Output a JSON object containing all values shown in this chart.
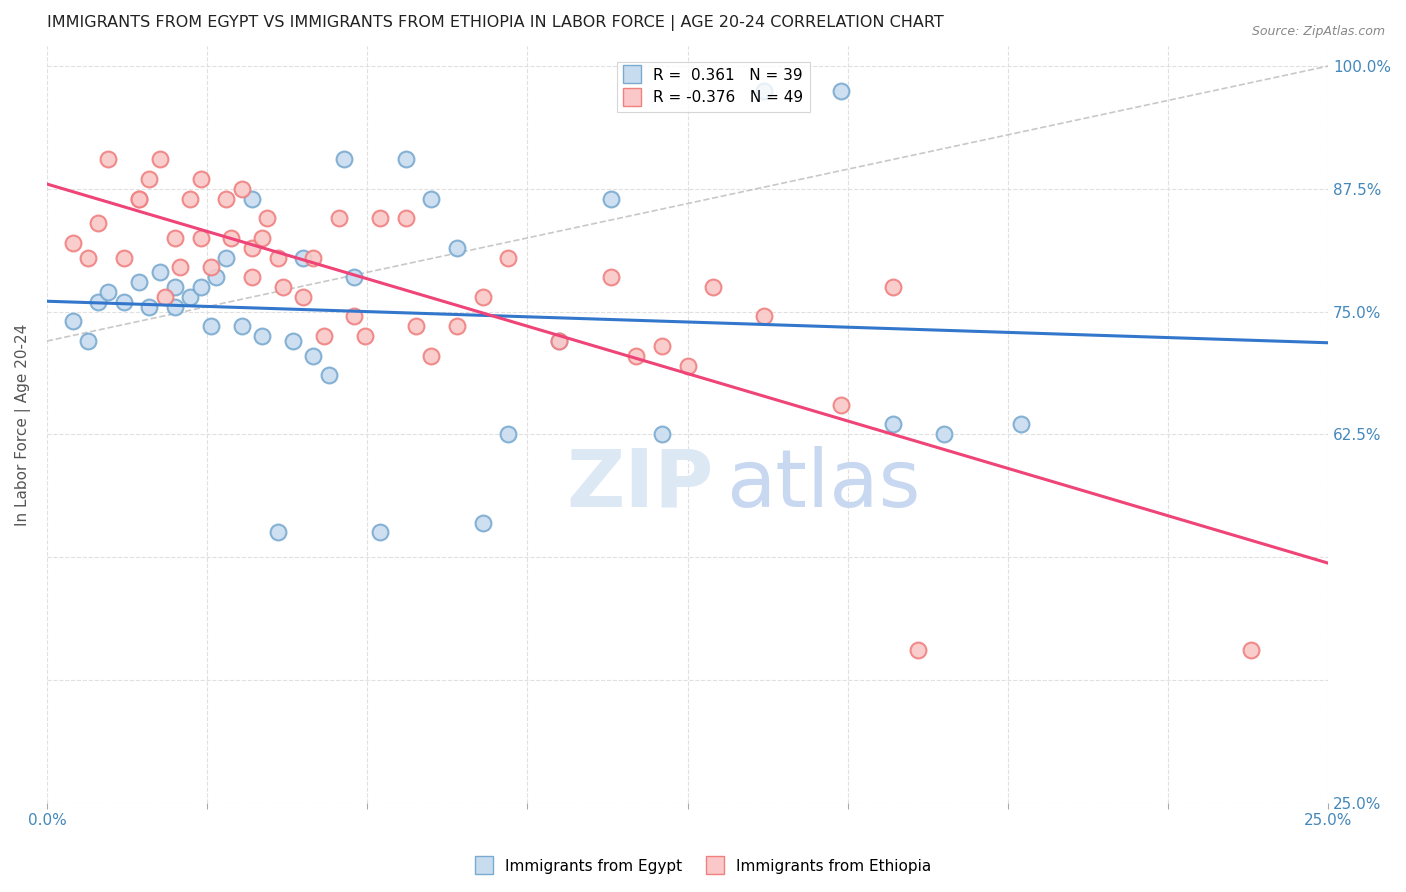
{
  "title": "IMMIGRANTS FROM EGYPT VS IMMIGRANTS FROM ETHIOPIA IN LABOR FORCE | AGE 20-24 CORRELATION CHART",
  "source": "Source: ZipAtlas.com",
  "ylabel": "In Labor Force | Age 20-24",
  "legend_bottom": [
    "Immigrants from Egypt",
    "Immigrants from Ethiopia"
  ],
  "egypt_R": 0.361,
  "egypt_N": 39,
  "ethiopia_R": -0.376,
  "ethiopia_N": 49,
  "egypt_edge_color": "#7AAAD0",
  "ethiopia_edge_color": "#F08080",
  "egypt_face_color": "#C8DCEF",
  "ethiopia_face_color": "#FAC8C8",
  "trend_egypt_color": "#3377CC",
  "trend_ethiopia_color": "#EE4477",
  "dashed_line_color": "#BBBBBB",
  "xlim": [
    0.0,
    0.25
  ],
  "ylim": [
    0.25,
    1.02
  ],
  "right_yticks": [
    1.0,
    0.875,
    0.75,
    0.625,
    0.25
  ],
  "right_yticklabels": [
    "100.0%",
    "87.5%",
    "75.0%",
    "62.5%",
    "25.0%"
  ],
  "egypt_x": [
    0.005,
    0.008,
    0.01,
    0.012,
    0.015,
    0.018,
    0.02,
    0.022,
    0.025,
    0.025,
    0.028,
    0.03,
    0.032,
    0.033,
    0.035,
    0.038,
    0.04,
    0.042,
    0.045,
    0.048,
    0.05,
    0.052,
    0.055,
    0.058,
    0.06,
    0.065,
    0.07,
    0.075,
    0.08,
    0.085,
    0.09,
    0.1,
    0.11,
    0.12,
    0.14,
    0.155,
    0.165,
    0.175,
    0.19
  ],
  "egypt_y": [
    0.74,
    0.72,
    0.76,
    0.77,
    0.76,
    0.78,
    0.755,
    0.79,
    0.755,
    0.775,
    0.765,
    0.775,
    0.735,
    0.785,
    0.805,
    0.735,
    0.865,
    0.725,
    0.525,
    0.72,
    0.805,
    0.705,
    0.685,
    0.905,
    0.785,
    0.525,
    0.905,
    0.865,
    0.815,
    0.535,
    0.625,
    0.72,
    0.865,
    0.625,
    0.975,
    0.975,
    0.635,
    0.625,
    0.635
  ],
  "ethiopia_x": [
    0.005,
    0.008,
    0.01,
    0.012,
    0.015,
    0.018,
    0.018,
    0.02,
    0.022,
    0.023,
    0.025,
    0.026,
    0.028,
    0.03,
    0.03,
    0.032,
    0.035,
    0.036,
    0.038,
    0.04,
    0.04,
    0.042,
    0.043,
    0.045,
    0.046,
    0.05,
    0.052,
    0.054,
    0.057,
    0.06,
    0.062,
    0.065,
    0.07,
    0.072,
    0.075,
    0.08,
    0.085,
    0.09,
    0.1,
    0.11,
    0.115,
    0.12,
    0.125,
    0.13,
    0.14,
    0.155,
    0.165,
    0.17,
    0.235
  ],
  "ethiopia_y": [
    0.82,
    0.805,
    0.84,
    0.905,
    0.805,
    0.865,
    0.865,
    0.885,
    0.905,
    0.765,
    0.825,
    0.795,
    0.865,
    0.825,
    0.885,
    0.795,
    0.865,
    0.825,
    0.875,
    0.785,
    0.815,
    0.825,
    0.845,
    0.805,
    0.775,
    0.765,
    0.805,
    0.725,
    0.845,
    0.745,
    0.725,
    0.845,
    0.845,
    0.735,
    0.705,
    0.735,
    0.765,
    0.805,
    0.72,
    0.785,
    0.705,
    0.715,
    0.695,
    0.775,
    0.745,
    0.655,
    0.775,
    0.405,
    0.405
  ],
  "background_color": "#FFFFFF",
  "grid_color": "#E0E0E0",
  "marker_size": 130
}
